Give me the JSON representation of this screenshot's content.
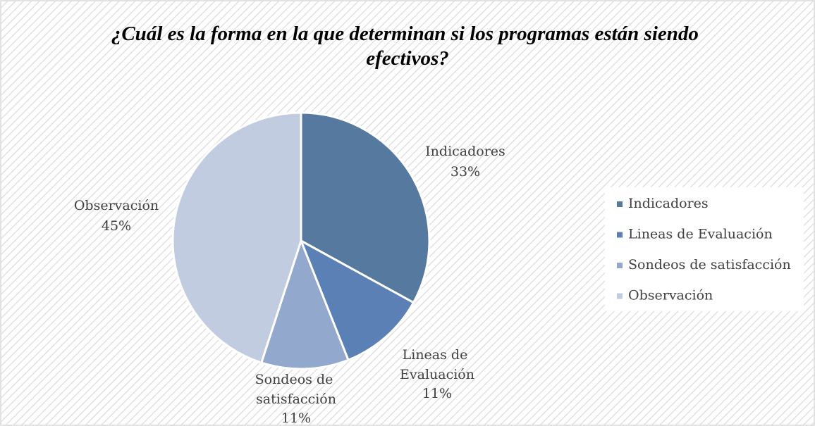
{
  "chart_data": {
    "type": "pie",
    "title": "¿Cuál es la forma en la que determinan si los programas están siendo efectivos?",
    "categories": [
      "Indicadores",
      "Lineas de Evaluación",
      "Sondeos de satisfacción",
      "Observación"
    ],
    "values": [
      33,
      11,
      11,
      45
    ],
    "value_labels": [
      "33%",
      "11%",
      "11%",
      "45%"
    ],
    "colors": [
      "#56799f",
      "#5a80b6",
      "#93a8cd",
      "#c2cce1"
    ],
    "legend": "right"
  }
}
